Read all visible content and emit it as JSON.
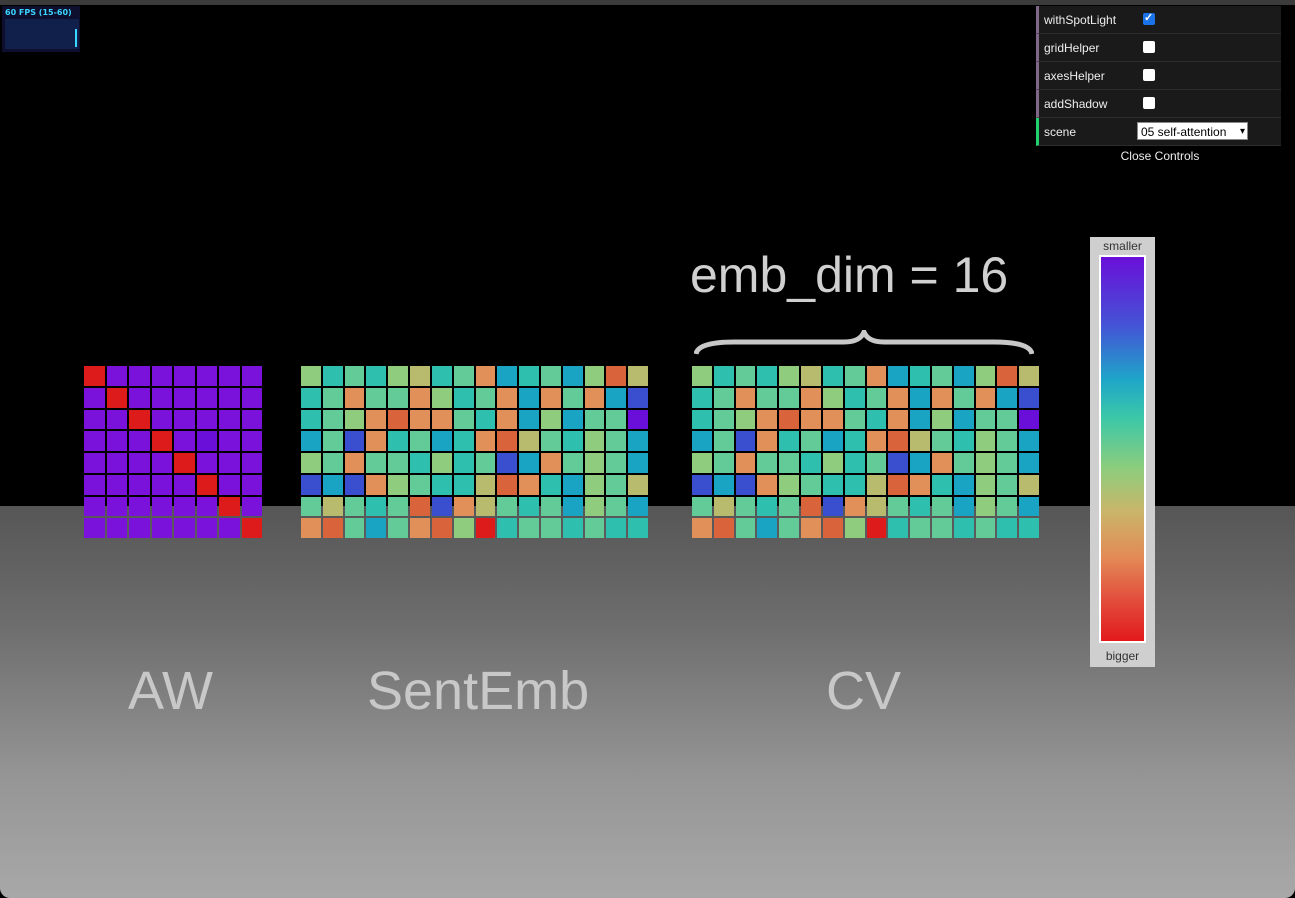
{
  "fps": {
    "label": "60 FPS (15-60)"
  },
  "gui": {
    "items": [
      {
        "label": "withSpotLight",
        "checked": true
      },
      {
        "label": "gridHelper",
        "checked": false
      },
      {
        "label": "axesHelper",
        "checked": false
      },
      {
        "label": "addShadow",
        "checked": false
      }
    ],
    "scene_label": "scene",
    "scene_value": "05 self-attention",
    "close_label": "Close Controls"
  },
  "labels": {
    "aw": "AW",
    "sent_emb": "SentEmb",
    "cv": "CV",
    "emb_dim": "emb_dim = 16"
  },
  "color_scale": {
    "top": "smaller",
    "bottom": "bigger",
    "colors": {
      "V": "#6a0fd9",
      "W": "#7a12dc",
      "B": "#3a4fcf",
      "T": "#19a4c4",
      "A": "#2fbfae",
      "M": "#62cb97",
      "G": "#8fcc7e",
      "Y": "#b8bb6e",
      "O": "#e09058",
      "F": "#d9643c",
      "R": "#de1b1b"
    }
  },
  "matrices": {
    "aw": [
      "RWWWWWWW",
      "WRWWWWWW",
      "WWRWWWWW",
      "WWWRWVWW",
      "WWWWRWWW",
      "WWWWWRWW",
      "WWWWWWRW",
      "WWWWWWWR"
    ],
    "sent_emb": [
      "GAMAGYAMOTAMTGFY",
      "AMOMMOGAMOTOMOTB",
      "AMGOFOOMAOTGTMMV",
      "TMBOAMTAOFYMAGMT",
      "GMOMMAGAMBTOMGMT",
      "BTBOGMAAYFOATGMY",
      "MYMAMFBOYMAMTGMT",
      "OFMTMOFGRAMMAMAA"
    ],
    "cv": [
      "GAMAGYAMOTAMTGFY",
      "AMOMMOGAMOTOMOTB",
      "AMGOFOOMAOTGTMMV",
      "TMBOAMTAOFYMAGMT",
      "GMOMMAGAMBTOMGMT",
      "BTBOGMAAYFOATGMY",
      "MYMAMFBOYMAMTGMT",
      "OFMTMOFGRAMMAMAA"
    ]
  }
}
